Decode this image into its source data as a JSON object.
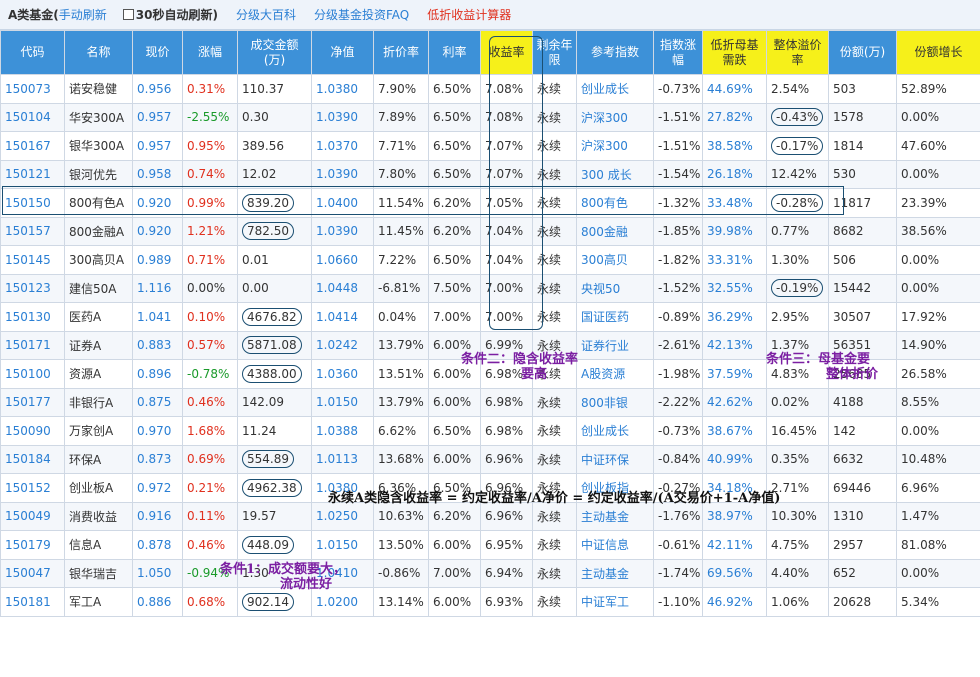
{
  "toolbar": {
    "title": "A类基金(",
    "manual_refresh": "手动刷新",
    "auto_refresh": "30秒自动刷新)",
    "links": [
      "分级大百科",
      "分级基金投资FAQ"
    ],
    "calculator": "低折收益计算器"
  },
  "table": {
    "headers": [
      "代码",
      "名称",
      "现价",
      "涨幅",
      "成交金额(万)",
      "净值",
      "折价率",
      "利率",
      "收益率",
      "剩余年限",
      "参考指数",
      "指数涨幅",
      "低折母基需跌",
      "整体溢价率",
      "份额(万)",
      "份额增长"
    ],
    "rows": [
      {
        "code": "150073",
        "name": "诺安稳健",
        "price": "0.956",
        "change": "0.31%",
        "volume": "110.37",
        "nav": "1.0380",
        "discount": "7.90%",
        "rate": "6.50%",
        "yield": "7.08%",
        "term": "永续",
        "index": "创业成长",
        "index_change": "-0.73%",
        "drop": "44.69%",
        "premium": "2.54%",
        "shares": "503",
        "growth": "52.89%"
      },
      {
        "code": "150104",
        "name": "华安300A",
        "price": "0.957",
        "change": "-2.55%",
        "volume": "0.30",
        "nav": "1.0390",
        "discount": "7.89%",
        "rate": "6.50%",
        "yield": "7.08%",
        "term": "永续",
        "index": "沪深300",
        "index_change": "-1.51%",
        "drop": "27.82%",
        "premium": "-0.43%",
        "shares": "1578",
        "growth": "0.00%"
      },
      {
        "code": "150167",
        "name": "银华300A",
        "price": "0.957",
        "change": "0.95%",
        "volume": "389.56",
        "nav": "1.0370",
        "discount": "7.71%",
        "rate": "6.50%",
        "yield": "7.07%",
        "term": "永续",
        "index": "沪深300",
        "index_change": "-1.51%",
        "drop": "38.58%",
        "premium": "-0.17%",
        "shares": "1814",
        "growth": "47.60%"
      },
      {
        "code": "150121",
        "name": "银河优先",
        "price": "0.958",
        "change": "0.74%",
        "volume": "12.02",
        "nav": "1.0390",
        "discount": "7.80%",
        "rate": "6.50%",
        "yield": "7.07%",
        "term": "永续",
        "index": "300 成长",
        "index_change": "-1.54%",
        "drop": "26.18%",
        "premium": "12.42%",
        "shares": "530",
        "growth": "0.00%"
      },
      {
        "code": "150150",
        "name": "800有色A",
        "price": "0.920",
        "change": "0.99%",
        "volume": "839.20",
        "nav": "1.0400",
        "discount": "11.54%",
        "rate": "6.20%",
        "yield": "7.05%",
        "term": "永续",
        "index": "800有色",
        "index_change": "-1.32%",
        "drop": "33.48%",
        "premium": "-0.28%",
        "shares": "11817",
        "growth": "23.39%"
      },
      {
        "code": "150157",
        "name": "800金融A",
        "price": "0.920",
        "change": "1.21%",
        "volume": "782.50",
        "nav": "1.0390",
        "discount": "11.45%",
        "rate": "6.20%",
        "yield": "7.04%",
        "term": "永续",
        "index": "800金融",
        "index_change": "-1.85%",
        "drop": "39.98%",
        "premium": "0.77%",
        "shares": "8682",
        "growth": "38.56%"
      },
      {
        "code": "150145",
        "name": "300高贝A",
        "price": "0.989",
        "change": "0.71%",
        "volume": "0.01",
        "nav": "1.0660",
        "discount": "7.22%",
        "rate": "6.50%",
        "yield": "7.04%",
        "term": "永续",
        "index": "300高贝",
        "index_change": "-1.82%",
        "drop": "33.31%",
        "premium": "1.30%",
        "shares": "506",
        "growth": "0.00%"
      },
      {
        "code": "150123",
        "name": "建信50A",
        "price": "1.116",
        "change": "0.00%",
        "volume": "0.00",
        "nav": "1.0448",
        "discount": "-6.81%",
        "rate": "7.50%",
        "yield": "7.00%",
        "term": "永续",
        "index": "央视50",
        "index_change": "-1.52%",
        "drop": "32.55%",
        "premium": "-0.19%",
        "shares": "15442",
        "growth": "0.00%"
      },
      {
        "code": "150130",
        "name": "医药A",
        "price": "1.041",
        "change": "0.10%",
        "volume": "4676.82",
        "nav": "1.0414",
        "discount": "0.04%",
        "rate": "7.00%",
        "yield": "7.00%",
        "term": "永续",
        "index": "国证医药",
        "index_change": "-0.89%",
        "drop": "36.29%",
        "premium": "2.95%",
        "shares": "30507",
        "growth": "17.92%"
      },
      {
        "code": "150171",
        "name": "证券A",
        "price": "0.883",
        "change": "0.57%",
        "volume": "5871.08",
        "nav": "1.0242",
        "discount": "13.79%",
        "rate": "6.00%",
        "yield": "6.99%",
        "term": "永续",
        "index": "证券行业",
        "index_change": "-2.61%",
        "drop": "42.13%",
        "premium": "1.37%",
        "shares": "56351",
        "growth": "14.90%"
      },
      {
        "code": "150100",
        "name": "资源A",
        "price": "0.896",
        "change": "-0.78%",
        "volume": "4388.00",
        "nav": "1.0360",
        "discount": "13.51%",
        "rate": "6.00%",
        "yield": "6.98%",
        "term": "永续",
        "index": "A股资源",
        "index_change": "-1.98%",
        "drop": "37.59%",
        "premium": "4.83%",
        "shares": "25685",
        "growth": "26.58%"
      },
      {
        "code": "150177",
        "name": "非银行A",
        "price": "0.875",
        "change": "0.46%",
        "volume": "142.09",
        "nav": "1.0150",
        "discount": "13.79%",
        "rate": "6.00%",
        "yield": "6.98%",
        "term": "永续",
        "index": "800非银",
        "index_change": "-2.22%",
        "drop": "42.62%",
        "premium": "0.02%",
        "shares": "4188",
        "growth": "8.55%"
      },
      {
        "code": "150090",
        "name": "万家创A",
        "price": "0.970",
        "change": "1.68%",
        "volume": "11.24",
        "nav": "1.0388",
        "discount": "6.62%",
        "rate": "6.50%",
        "yield": "6.98%",
        "term": "永续",
        "index": "创业成长",
        "index_change": "-0.73%",
        "drop": "38.67%",
        "premium": "16.45%",
        "shares": "142",
        "growth": "0.00%"
      },
      {
        "code": "150184",
        "name": "环保A",
        "price": "0.873",
        "change": "0.69%",
        "volume": "554.89",
        "nav": "1.0113",
        "discount": "13.68%",
        "rate": "6.00%",
        "yield": "6.96%",
        "term": "永续",
        "index": "中证环保",
        "index_change": "-0.84%",
        "drop": "40.99%",
        "premium": "0.35%",
        "shares": "6632",
        "growth": "10.48%"
      },
      {
        "code": "150152",
        "name": "创业板A",
        "price": "0.972",
        "change": "0.21%",
        "volume": "4962.38",
        "nav": "1.0380",
        "discount": "6.36%",
        "rate": "6.50%",
        "yield": "6.96%",
        "term": "永续",
        "index": "创业板指",
        "index_change": "-0.27%",
        "drop": "34.18%",
        "premium": "2.71%",
        "shares": "69446",
        "growth": "6.96%"
      },
      {
        "code": "150049",
        "name": "消费收益",
        "price": "0.916",
        "change": "0.11%",
        "volume": "19.57",
        "nav": "1.0250",
        "discount": "10.63%",
        "rate": "6.20%",
        "yield": "6.96%",
        "term": "永续",
        "index": "主动基金",
        "index_change": "-1.76%",
        "drop": "38.97%",
        "premium": "10.30%",
        "shares": "1310",
        "growth": "1.47%"
      },
      {
        "code": "150179",
        "name": "信息A",
        "price": "0.878",
        "change": "0.46%",
        "volume": "448.09",
        "nav": "1.0150",
        "discount": "13.50%",
        "rate": "6.00%",
        "yield": "6.95%",
        "term": "永续",
        "index": "中证信息",
        "index_change": "-0.61%",
        "drop": "42.11%",
        "premium": "4.75%",
        "shares": "2957",
        "growth": "81.08%"
      },
      {
        "code": "150047",
        "name": "银华瑞吉",
        "price": "1.050",
        "change": "-0.94%",
        "volume": "1.30",
        "nav": "1.0410",
        "discount": "-0.86%",
        "rate": "7.00%",
        "yield": "6.94%",
        "term": "永续",
        "index": "主动基金",
        "index_change": "-1.74%",
        "drop": "69.56%",
        "premium": "4.40%",
        "shares": "652",
        "growth": "0.00%"
      },
      {
        "code": "150181",
        "name": "军工A",
        "price": "0.886",
        "change": "0.68%",
        "volume": "902.14",
        "nav": "1.0200",
        "discount": "13.14%",
        "rate": "6.00%",
        "yield": "6.93%",
        "term": "永续",
        "index": "中证军工",
        "index_change": "-1.10%",
        "drop": "46.92%",
        "premium": "1.06%",
        "shares": "20628",
        "growth": "5.34%"
      }
    ]
  },
  "annotations": {
    "cond2_line1": "条件二：隐含收益率",
    "cond2_line2": "要高",
    "cond3_line1": "条件三：母基金要",
    "cond3_line2": "整体折价",
    "formula": "永续A类隐含收益率 = 约定收益率/A净价 = 约定收益率/(A交易价+1-A净值)",
    "cond1_line1": "条件1：成交额要大，",
    "cond1_line2": "流动性好"
  },
  "colors": {
    "header": "#3d91d8",
    "header_highlight": "#f6f01a",
    "up": "#e0301e",
    "down": "#1a9a2a",
    "link": "#2a7fd4",
    "annotation": "#7b1fa2"
  }
}
